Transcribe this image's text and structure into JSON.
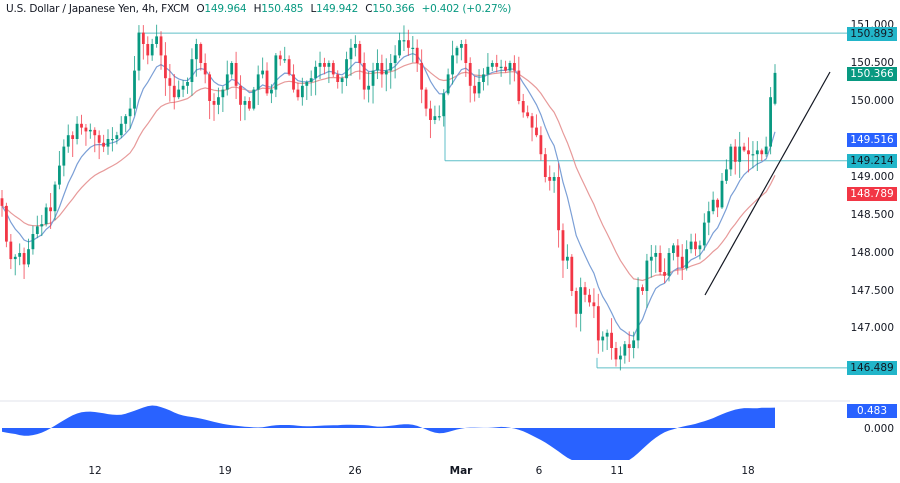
{
  "header": {
    "symbol": "U.S. Dollar / Japanese Yen, 4h, FXCM",
    "open_label": "O",
    "open": "149.964",
    "high_label": "H",
    "high": "150.485",
    "low_label": "L",
    "low": "149.942",
    "close_label": "C",
    "close": "150.366",
    "change": "+0.402 (+0.27%)"
  },
  "price_axis": {
    "ticks": [
      "151.000",
      "150.500",
      "150.000",
      "149.000",
      "148.500",
      "148.000",
      "147.500",
      "147.000"
    ],
    "tags": [
      {
        "label": "150.893",
        "bg": "#22b5c9",
        "fg": "#131722",
        "kind": "horizontal-line-high"
      },
      {
        "label": "150.366",
        "bg": "#089981",
        "fg": "#ffffff",
        "kind": "last-price"
      },
      {
        "label": "149.516",
        "bg": "#2962ff",
        "fg": "#ffffff",
        "kind": "fast-ma"
      },
      {
        "label": "149.214",
        "bg": "#22b5c9",
        "fg": "#131722",
        "kind": "horizontal-line-mid"
      },
      {
        "label": "148.789",
        "bg": "#f23645",
        "fg": "#ffffff",
        "kind": "slow-ma"
      },
      {
        "label": "146.489",
        "bg": "#22b5c9",
        "fg": "#131722",
        "kind": "horizontal-line-low"
      }
    ]
  },
  "indicator_axis": {
    "value_tag": "0.483",
    "value_tag_bg": "#2962ff",
    "zero_label": "0.000"
  },
  "time_axis": {
    "labels": [
      {
        "text": "12",
        "bold": false
      },
      {
        "text": "19",
        "bold": false
      },
      {
        "text": "26",
        "bold": false
      },
      {
        "text": "Mar",
        "bold": true
      },
      {
        "text": "6",
        "bold": false
      },
      {
        "text": "11",
        "bold": false
      },
      {
        "text": "18",
        "bold": false
      }
    ]
  },
  "colors": {
    "up": "#089981",
    "down": "#f23645",
    "fast_ma": "#7b9fd6",
    "slow_ma": "#e79a9a",
    "level_line": "#5fbfc8",
    "trendline": "#131722",
    "indicator_fill": "#2962ff"
  },
  "chart_data": {
    "type": "candlestick",
    "title": "U.S. Dollar / Japanese Yen, 4h, FXCM",
    "timeframe": "4h",
    "ohlc_last": {
      "open": 149.964,
      "high": 150.485,
      "low": 149.942,
      "close": 150.366,
      "change": 0.402,
      "change_pct": 0.27
    },
    "x_tick_labels": [
      "12",
      "19",
      "26",
      "Mar",
      "6",
      "11",
      "18"
    ],
    "ylim": [
      146.2,
      151.1
    ],
    "y_ticks": [
      147.0,
      147.5,
      148.0,
      148.5,
      149.0,
      150.0,
      150.5,
      151.0
    ],
    "horizontal_levels": [
      150.893,
      149.214,
      146.489
    ],
    "moving_averages": {
      "fast_last": 149.516,
      "slow_last": 148.789
    },
    "trendline": {
      "from": [
        147.45,
        "Mar 15"
      ],
      "to": [
        150.4,
        "Mar 19 (projected)"
      ]
    },
    "closes": [
      148.62,
      148.15,
      147.92,
      147.95,
      148.0,
      147.85,
      148.05,
      148.25,
      148.35,
      148.38,
      148.6,
      148.55,
      148.9,
      149.15,
      149.4,
      149.55,
      149.5,
      149.7,
      149.65,
      149.6,
      149.62,
      149.55,
      149.45,
      149.4,
      149.5,
      149.5,
      149.55,
      149.7,
      149.8,
      149.9,
      150.4,
      150.9,
      150.75,
      150.6,
      150.75,
      150.85,
      150.6,
      150.3,
      150.2,
      150.05,
      150.15,
      150.2,
      150.25,
      150.55,
      150.75,
      150.5,
      150.35,
      150.0,
      149.95,
      150.05,
      150.15,
      150.35,
      150.5,
      150.2,
      149.95,
      150.0,
      149.9,
      150.15,
      150.35,
      150.4,
      150.1,
      150.15,
      150.6,
      150.55,
      150.55,
      150.35,
      150.15,
      150.05,
      150.2,
      150.25,
      150.3,
      150.45,
      150.5,
      150.45,
      150.5,
      150.35,
      150.25,
      150.3,
      150.55,
      150.7,
      150.75,
      150.5,
      150.15,
      150.2,
      150.4,
      150.5,
      150.35,
      150.4,
      150.5,
      150.6,
      150.8,
      150.8,
      150.7,
      150.7,
      150.5,
      150.15,
      149.9,
      149.75,
      149.8,
      149.8,
      150.1,
      150.35,
      150.6,
      150.7,
      150.75,
      150.5,
      150.2,
      150.1,
      150.25,
      150.35,
      150.45,
      150.5,
      150.45,
      150.45,
      150.4,
      150.5,
      150.4,
      150.0,
      149.85,
      149.8,
      149.65,
      149.55,
      149.3,
      149.0,
      148.95,
      149.0,
      148.3,
      147.9,
      147.95,
      147.5,
      147.2,
      147.55,
      147.45,
      147.35,
      147.3,
      146.85,
      146.9,
      146.95,
      146.75,
      146.6,
      146.65,
      146.8,
      146.75,
      146.85,
      147.55,
      147.5,
      147.9,
      147.95,
      148.0,
      147.75,
      147.7,
      148.0,
      148.1,
      147.95,
      147.8,
      148.05,
      148.15,
      148.05,
      148.1,
      148.4,
      148.55,
      148.7,
      148.6,
      148.95,
      149.1,
      149.4,
      149.2,
      149.4,
      149.35,
      149.3,
      149.3,
      149.35,
      149.3,
      149.4,
      150.05,
      150.37
    ]
  },
  "indicator_data": {
    "type": "area",
    "last": 0.483,
    "zero_line": 0.0
  }
}
